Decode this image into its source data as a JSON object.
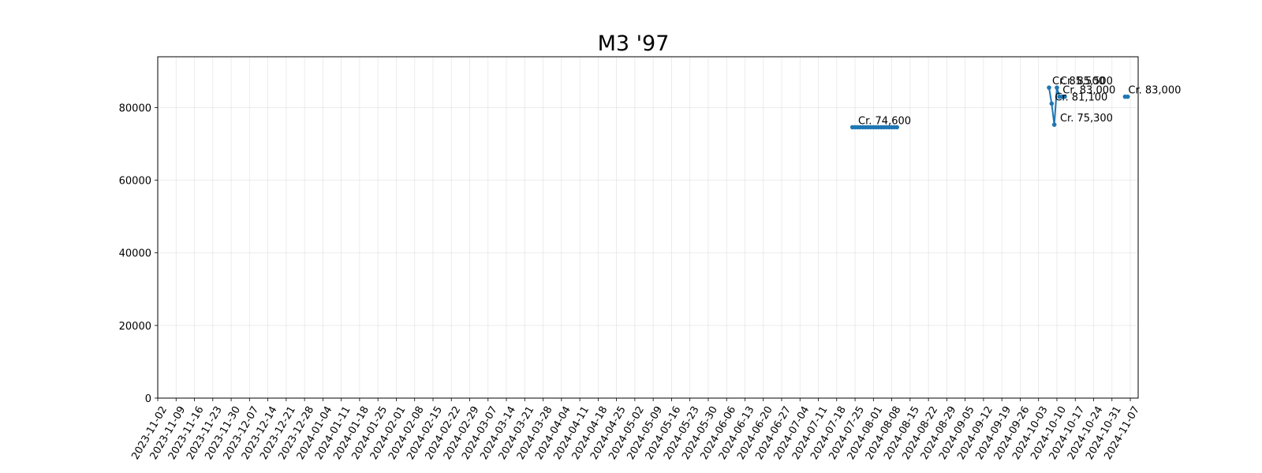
{
  "chart_data": {
    "type": "line",
    "title": "M3 '97",
    "xlabel": "",
    "ylabel": "",
    "xlim": [
      "2023-11-02",
      "2024-11-10"
    ],
    "ylim": [
      0,
      94000
    ],
    "grid": true,
    "y_ticks": [
      0,
      20000,
      40000,
      60000,
      80000
    ],
    "x_ticks": [
      "2023-11-02",
      "2023-11-09",
      "2023-11-16",
      "2023-11-23",
      "2023-11-30",
      "2023-12-07",
      "2023-12-14",
      "2023-12-21",
      "2023-12-28",
      "2024-01-04",
      "2024-01-11",
      "2024-01-18",
      "2024-01-25",
      "2024-02-01",
      "2024-02-08",
      "2024-02-15",
      "2024-02-22",
      "2024-02-29",
      "2024-03-07",
      "2024-03-14",
      "2024-03-21",
      "2024-03-28",
      "2024-04-04",
      "2024-04-11",
      "2024-04-18",
      "2024-04-25",
      "2024-05-02",
      "2024-05-09",
      "2024-05-16",
      "2024-05-23",
      "2024-05-30",
      "2024-06-06",
      "2024-06-13",
      "2024-06-20",
      "2024-06-27",
      "2024-07-04",
      "2024-07-11",
      "2024-07-18",
      "2024-07-25",
      "2024-08-01",
      "2024-08-08",
      "2024-08-15",
      "2024-08-22",
      "2024-08-29",
      "2024-09-05",
      "2024-09-12",
      "2024-09-19",
      "2024-09-26",
      "2024-10-03",
      "2024-10-10",
      "2024-10-17",
      "2024-10-24",
      "2024-10-31",
      "2024-11-07"
    ],
    "color": "#1f77b4",
    "segments": [
      {
        "points": [
          {
            "x": "2024-07-24",
            "y": 74600
          },
          {
            "x": "2024-07-25",
            "y": 74600
          },
          {
            "x": "2024-07-26",
            "y": 74600
          },
          {
            "x": "2024-07-27",
            "y": 74600
          },
          {
            "x": "2024-07-28",
            "y": 74600
          },
          {
            "x": "2024-07-29",
            "y": 74600
          },
          {
            "x": "2024-07-30",
            "y": 74600
          },
          {
            "x": "2024-07-31",
            "y": 74600
          },
          {
            "x": "2024-08-01",
            "y": 74600
          },
          {
            "x": "2024-08-02",
            "y": 74600
          },
          {
            "x": "2024-08-03",
            "y": 74600
          },
          {
            "x": "2024-08-04",
            "y": 74600
          },
          {
            "x": "2024-08-05",
            "y": 74600
          },
          {
            "x": "2024-08-06",
            "y": 74600
          },
          {
            "x": "2024-08-07",
            "y": 74600
          },
          {
            "x": "2024-08-08",
            "y": 74600
          },
          {
            "x": "2024-08-09",
            "y": 74600
          },
          {
            "x": "2024-08-10",
            "y": 74600
          }
        ]
      },
      {
        "points": [
          {
            "x": "2024-10-07",
            "y": 85500
          },
          {
            "x": "2024-10-08",
            "y": 81100
          },
          {
            "x": "2024-10-09",
            "y": 75300
          },
          {
            "x": "2024-10-10",
            "y": 85500
          },
          {
            "x": "2024-10-11",
            "y": 83000
          },
          {
            "x": "2024-10-12",
            "y": 83000
          },
          {
            "x": "2024-10-13",
            "y": 83000
          }
        ]
      },
      {
        "points": [
          {
            "x": "2024-11-05",
            "y": 83000
          },
          {
            "x": "2024-11-06",
            "y": 83000
          }
        ]
      }
    ],
    "annotations": [
      {
        "x": "2024-07-25",
        "y": 74600,
        "text": "Cr. 74,600"
      },
      {
        "x": "2024-10-07",
        "y": 85500,
        "text": "Cr. 85,500"
      },
      {
        "x": "2024-10-10",
        "y": 85500,
        "text": "Cr. 85,500"
      },
      {
        "x": "2024-10-11",
        "y": 83000,
        "text": "Cr. 83,000"
      },
      {
        "x": "2024-10-08",
        "y": 81100,
        "text": "Cr. 81,100"
      },
      {
        "x": "2024-10-10",
        "y": 75300,
        "text": "Cr. 75,300"
      },
      {
        "x": "2024-11-05",
        "y": 83000,
        "text": "Cr. 83,000"
      }
    ]
  }
}
